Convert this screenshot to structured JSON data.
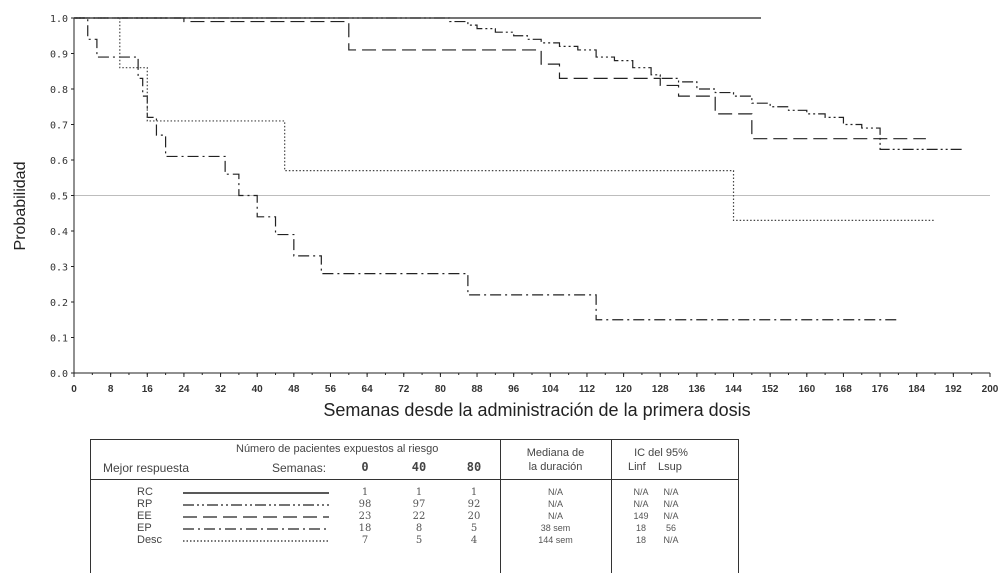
{
  "chart_data": {
    "type": "line",
    "ylabel": "Probabilidad",
    "xlabel": "Semanas desde la administración de la primera dosis",
    "xlim": [
      0,
      200
    ],
    "ylim": [
      0,
      1
    ],
    "x_ticks": [
      "0",
      "8",
      "16",
      "24",
      "32",
      "40",
      "48",
      "56",
      "64",
      "72",
      "80",
      "88",
      "96",
      "104",
      "112",
      "120",
      "128",
      "136",
      "144",
      "152",
      "160",
      "168",
      "176",
      "184",
      "192",
      "200"
    ],
    "y_ticks": [
      "0.0",
      "0.1",
      "0.2",
      "0.3",
      "0.4",
      "0.5",
      "0.6",
      "0.7",
      "0.8",
      "0.9",
      "1.0"
    ],
    "reference_line": 0.5,
    "series": [
      {
        "name": "RC",
        "style": "solid",
        "steps": [
          [
            0,
            1.0
          ],
          [
            150,
            1.0
          ]
        ]
      },
      {
        "name": "RP",
        "style": "dash-dot-dot",
        "steps": [
          [
            0,
            1.0
          ],
          [
            82,
            0.99
          ],
          [
            86,
            0.98
          ],
          [
            88,
            0.97
          ],
          [
            92,
            0.96
          ],
          [
            96,
            0.95
          ],
          [
            99,
            0.94
          ],
          [
            102,
            0.93
          ],
          [
            106,
            0.92
          ],
          [
            110,
            0.91
          ],
          [
            114,
            0.89
          ],
          [
            118,
            0.88
          ],
          [
            122,
            0.86
          ],
          [
            126,
            0.84
          ],
          [
            128,
            0.83
          ],
          [
            132,
            0.82
          ],
          [
            136,
            0.8
          ],
          [
            140,
            0.79
          ],
          [
            144,
            0.78
          ],
          [
            148,
            0.76
          ],
          [
            152,
            0.75
          ],
          [
            156,
            0.74
          ],
          [
            160,
            0.73
          ],
          [
            164,
            0.72
          ],
          [
            168,
            0.7
          ],
          [
            172,
            0.69
          ],
          [
            176,
            0.63
          ],
          [
            194,
            0.63
          ]
        ]
      },
      {
        "name": "EE",
        "style": "dashed",
        "steps": [
          [
            0,
            1.0
          ],
          [
            24,
            0.99
          ],
          [
            60,
            0.91
          ],
          [
            102,
            0.87
          ],
          [
            106,
            0.83
          ],
          [
            124,
            0.83
          ],
          [
            128,
            0.81
          ],
          [
            132,
            0.78
          ],
          [
            140,
            0.73
          ],
          [
            148,
            0.66
          ],
          [
            186,
            0.66
          ]
        ]
      },
      {
        "name": "EP",
        "style": "dash-dot",
        "steps": [
          [
            0,
            1.0
          ],
          [
            3,
            0.94
          ],
          [
            5,
            0.89
          ],
          [
            11,
            0.89
          ],
          [
            14,
            0.83
          ],
          [
            15,
            0.78
          ],
          [
            16,
            0.72
          ],
          [
            18,
            0.67
          ],
          [
            20,
            0.61
          ],
          [
            27,
            0.61
          ],
          [
            33,
            0.56
          ],
          [
            36,
            0.5
          ],
          [
            40,
            0.44
          ],
          [
            44,
            0.39
          ],
          [
            48,
            0.33
          ],
          [
            54,
            0.28
          ],
          [
            86,
            0.22
          ],
          [
            114,
            0.15
          ],
          [
            180,
            0.15
          ]
        ]
      },
      {
        "name": "Desc",
        "style": "dotted",
        "steps": [
          [
            0,
            1.0
          ],
          [
            10,
            0.86
          ],
          [
            16,
            0.71
          ],
          [
            46,
            0.57
          ],
          [
            144,
            0.43
          ],
          [
            188,
            0.43
          ]
        ]
      }
    ]
  },
  "table": {
    "header_risk": "Número de pacientes expuestos al riesgo",
    "header_best": "Mejor respuesta",
    "header_weeks": "Semanas:",
    "week_cols": [
      "0",
      "40",
      "80"
    ],
    "header_median_1": "Mediana de",
    "header_median_2": "la duración",
    "header_ci": "IC del 95%",
    "header_linf": "Linf",
    "header_lsup": "Lsup",
    "rows": [
      {
        "label": "RC",
        "n": [
          "1",
          "1",
          "1"
        ],
        "median": "N/A",
        "linf": "N/A",
        "lsup": "N/A"
      },
      {
        "label": "RP",
        "n": [
          "98",
          "97",
          "92"
        ],
        "median": "N/A",
        "linf": "N/A",
        "lsup": "N/A"
      },
      {
        "label": "EE",
        "n": [
          "23",
          "22",
          "20"
        ],
        "median": "N/A",
        "linf": "149",
        "lsup": "N/A"
      },
      {
        "label": "EP",
        "n": [
          "18",
          "8",
          "5"
        ],
        "median": "38  sem",
        "linf": "18",
        "lsup": "56"
      },
      {
        "label": "Desc",
        "n": [
          "7",
          "5",
          "4"
        ],
        "median": "144 sem",
        "linf": "18",
        "lsup": "N/A"
      }
    ]
  }
}
